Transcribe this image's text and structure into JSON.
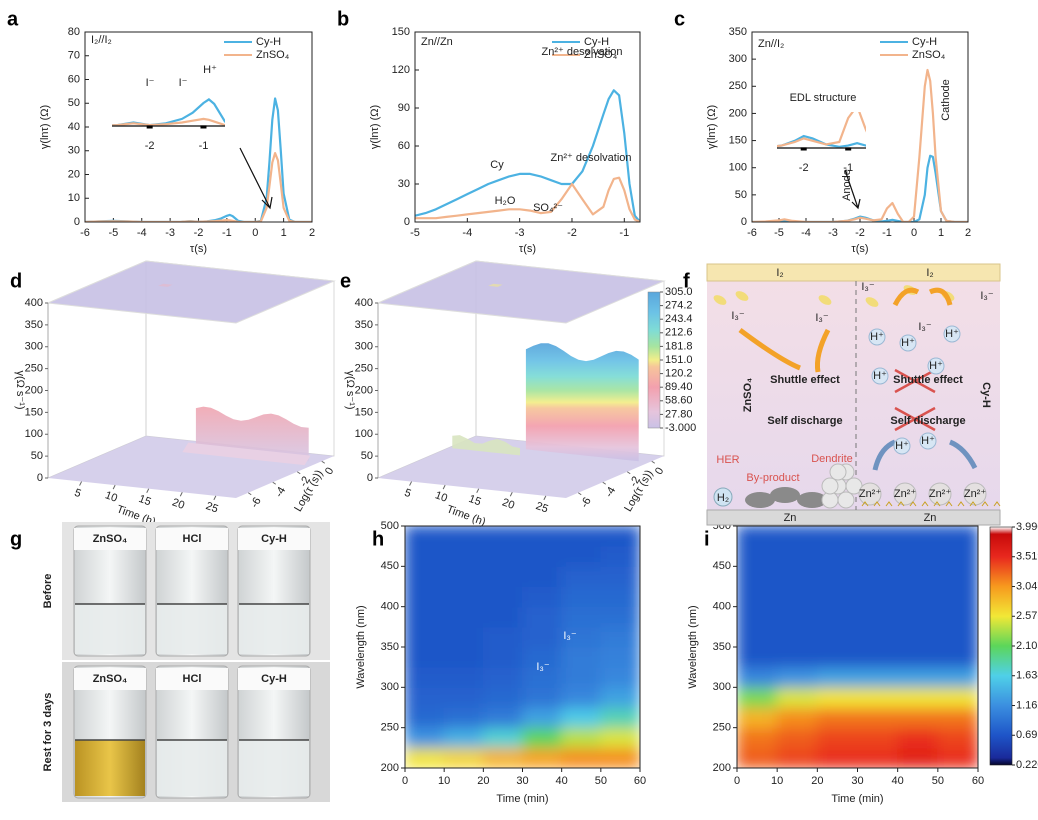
{
  "chart_data": [
    {
      "type": "line",
      "label": "a",
      "xlabel": "τ(s)",
      "ylabel": "γ(lnτ) (Ω)",
      "xlim": [
        -6,
        2
      ],
      "xticks": [
        -6,
        -5,
        -4,
        -3,
        -2,
        -1,
        0,
        1,
        2
      ],
      "ylim": [
        0,
        80
      ],
      "yticks": [
        0,
        10,
        20,
        30,
        40,
        50,
        60,
        70,
        80
      ],
      "annotations": [
        "I₂//I₂"
      ],
      "x": [
        -6,
        -5.5,
        -5,
        -4.5,
        -4,
        -3.5,
        -3,
        -2.6,
        -2.3,
        -2,
        -1.7,
        -1.4,
        -1.2,
        -1,
        -0.9,
        -0.8,
        -0.6,
        -0.4,
        -0.2,
        0,
        0.2,
        0.4,
        0.5,
        0.6,
        0.7,
        0.8,
        0.9,
        1,
        1.2,
        1.4,
        1.6,
        2
      ],
      "series": [
        {
          "name": "Cy-H",
          "color": "#4cb2e2",
          "values": [
            0,
            0.3,
            0.5,
            0.3,
            0,
            0,
            0,
            0.1,
            0.4,
            0.1,
            0.3,
            0.8,
            1.5,
            2.6,
            3,
            2.5,
            0.5,
            0,
            0,
            0,
            0.5,
            10,
            25,
            43,
            52,
            47,
            30,
            12,
            1,
            0,
            0,
            0
          ]
        },
        {
          "name": "ZnSO₄",
          "color": "#f2b48c",
          "values": [
            0,
            0.2,
            0.3,
            0.2,
            0,
            0,
            0,
            0.1,
            0.3,
            0.1,
            0.2,
            0.4,
            0.6,
            0.8,
            0.7,
            0.5,
            0.1,
            0,
            0,
            0,
            0.3,
            6,
            15,
            25,
            29,
            26,
            16,
            6,
            0.5,
            0,
            0,
            0
          ]
        }
      ],
      "inset": {
        "xlim": [
          -2.7,
          -0.6
        ],
        "ylim": [
          0,
          3.5
        ],
        "xticks": [
          -2,
          -1
        ],
        "annotations": [
          "I⁻",
          "I⁻",
          "H⁺"
        ]
      }
    },
    {
      "type": "line",
      "label": "b",
      "xlabel": "τ(s)",
      "ylabel": "γ(lnτ) (Ω)",
      "xlim": [
        -5,
        -0.7
      ],
      "xticks": [
        -5,
        -4,
        -3,
        -2,
        -1
      ],
      "ylim": [
        0,
        150
      ],
      "yticks": [
        0,
        30,
        60,
        90,
        120,
        150
      ],
      "annotations": [
        "Zn//Zn",
        "Cy",
        "H₂O",
        "Zn²⁺ desolvation",
        "SO₄²⁻",
        "Zn²⁺ desolvation"
      ],
      "x": [
        -5,
        -4.8,
        -4.6,
        -4.4,
        -4.2,
        -4,
        -3.8,
        -3.6,
        -3.4,
        -3.2,
        -3,
        -2.8,
        -2.6,
        -2.4,
        -2.2,
        -2,
        -1.8,
        -1.6,
        -1.4,
        -1.3,
        -1.2,
        -1.1,
        -1,
        -0.9,
        -0.8,
        -0.7
      ],
      "series": [
        {
          "name": "Cy-H",
          "color": "#4cb2e2",
          "values": [
            5,
            7,
            10,
            14,
            18,
            22,
            26,
            30,
            33,
            36,
            38,
            38,
            36,
            33,
            30,
            30,
            40,
            60,
            85,
            97,
            104,
            100,
            70,
            30,
            5,
            0
          ]
        },
        {
          "name": "ZnSO₄",
          "color": "#f2b48c",
          "values": [
            3,
            3,
            3,
            4,
            5,
            6,
            7,
            8,
            9,
            10,
            10,
            9,
            7,
            8,
            18,
            30,
            18,
            6,
            12,
            25,
            34,
            35,
            25,
            10,
            2,
            0
          ]
        }
      ]
    },
    {
      "type": "line",
      "label": "c",
      "xlabel": "τ(s)",
      "ylabel": "γ(lnτ) (Ω)",
      "xlim": [
        -6,
        2
      ],
      "xticks": [
        -6,
        -5,
        -4,
        -3,
        -2,
        -1,
        0,
        1,
        2
      ],
      "ylim": [
        0,
        350
      ],
      "yticks": [
        0,
        50,
        100,
        150,
        200,
        250,
        300,
        350
      ],
      "annotations": [
        "Zn//I₂",
        "Anode",
        "Cathode"
      ],
      "x": [
        -6,
        -5.5,
        -5,
        -4.8,
        -4.5,
        -4,
        -3.5,
        -3,
        -2.5,
        -2.2,
        -2,
        -1.8,
        -1.5,
        -1.2,
        -1,
        -0.8,
        -0.6,
        -0.4,
        -0.2,
        0,
        0.2,
        0.4,
        0.5,
        0.6,
        0.7,
        0.8,
        1,
        1.2,
        1.5,
        2
      ],
      "series": [
        {
          "name": "Cy-H",
          "color": "#4cb2e2",
          "values": [
            0,
            0,
            1,
            1,
            0,
            0,
            0,
            0,
            2,
            6,
            10,
            8,
            3,
            1,
            2,
            4,
            2,
            0,
            0,
            0,
            5,
            50,
            100,
            122,
            120,
            90,
            20,
            2,
            0,
            0
          ]
        },
        {
          "name": "ZnSO₄",
          "color": "#f2b48c",
          "values": [
            0,
            1,
            3,
            5,
            2,
            0,
            0,
            0,
            2,
            5,
            8,
            6,
            3,
            5,
            25,
            35,
            15,
            0,
            0,
            10,
            120,
            250,
            280,
            260,
            200,
            120,
            20,
            2,
            0,
            0
          ]
        }
      ],
      "inset": {
        "xlim": [
          -2.6,
          -0.6
        ],
        "ylim": [
          0,
          30
        ],
        "xticks": [
          -2,
          -1
        ],
        "annotations": [
          "EDL structure"
        ]
      }
    },
    {
      "type": "surface3d",
      "label": "d",
      "zlabel": "γ(Ω s⁻¹)",
      "xlabel": "Time (h)",
      "ylabel": "Log(τ (s))",
      "zlim": [
        0,
        400
      ],
      "zticks": [
        0,
        50,
        100,
        150,
        200,
        250,
        300,
        350,
        400
      ],
      "xlim": [
        0,
        28
      ],
      "xticks": [
        5,
        10,
        15,
        20,
        25
      ],
      "ylim": [
        -7,
        1
      ],
      "yticks": [
        -6,
        -4,
        -2,
        0
      ]
    },
    {
      "type": "surface3d",
      "label": "e",
      "zlabel": "γ(Ω s⁻¹)",
      "xlabel": "Time (h)",
      "ylabel": "Log(τ (s))",
      "zlim": [
        0,
        400
      ],
      "zticks": [
        0,
        50,
        100,
        150,
        200,
        250,
        300,
        350,
        400
      ],
      "xlim": [
        0,
        28
      ],
      "xticks": [
        5,
        10,
        15,
        20,
        25
      ],
      "ylim": [
        -7,
        1
      ],
      "yticks": [
        -6,
        -4,
        -2,
        0
      ],
      "colorbar": {
        "lim": [
          -3,
          305
        ],
        "ticks": [
          {
            "value": 305,
            "label": "305.0"
          },
          274.2,
          243.4,
          212.6,
          181.8,
          {
            "value": 151,
            "label": "151.0"
          },
          120.2,
          {
            "value": 89.4,
            "label": "89.40"
          },
          {
            "value": 58.6,
            "label": "58.60"
          },
          {
            "value": 27.8,
            "label": "27.80"
          },
          {
            "value": -3,
            "label": "-3.000"
          }
        ]
      }
    },
    {
      "type": "heatmap",
      "label": "h",
      "xlabel": "Time (min)",
      "ylabel": "Wavelength (nm)",
      "xlim": [
        0,
        60
      ],
      "xticks": [
        0,
        10,
        20,
        30,
        40,
        50,
        60
      ],
      "ylim": [
        200,
        500
      ],
      "yticks": [
        200,
        250,
        300,
        350,
        400,
        450,
        500
      ],
      "xbins": [
        0,
        10,
        20,
        30,
        40,
        50,
        60
      ],
      "ybins": [
        200,
        225,
        250,
        275,
        300,
        325,
        350,
        375,
        400,
        425,
        450,
        475,
        500
      ],
      "zlim": [
        0.22,
        3.99
      ],
      "annotations": [
        "I₃⁻",
        "I₃⁻"
      ],
      "z": [
        [
          2.6,
          2.7,
          2.9,
          3.0,
          3.1,
          3.1
        ],
        [
          1.2,
          1.4,
          1.7,
          2.1,
          2.4,
          2.5
        ],
        [
          0.85,
          0.9,
          1.0,
          1.3,
          1.6,
          1.8
        ],
        [
          0.8,
          0.8,
          0.85,
          0.95,
          1.1,
          1.3
        ],
        [
          0.75,
          0.75,
          0.8,
          0.9,
          1.0,
          1.1
        ],
        [
          0.7,
          0.7,
          0.75,
          0.85,
          1.0,
          1.05
        ],
        [
          0.7,
          0.7,
          0.75,
          0.8,
          0.95,
          1.0
        ],
        [
          0.7,
          0.7,
          0.7,
          0.8,
          0.9,
          0.9
        ],
        [
          0.7,
          0.7,
          0.7,
          0.75,
          0.85,
          0.85
        ],
        [
          0.7,
          0.7,
          0.7,
          0.7,
          0.8,
          0.8
        ],
        [
          0.7,
          0.7,
          0.7,
          0.7,
          0.7,
          0.75
        ],
        [
          0.7,
          0.7,
          0.7,
          0.7,
          0.7,
          0.7
        ]
      ]
    },
    {
      "type": "heatmap",
      "label": "i",
      "xlabel": "Time (min)",
      "ylabel": "Wavelength (nm)",
      "xlim": [
        0,
        60
      ],
      "xticks": [
        0,
        10,
        20,
        30,
        40,
        50,
        60
      ],
      "ylim": [
        200,
        500
      ],
      "yticks": [
        200,
        250,
        300,
        350,
        400,
        450,
        500
      ],
      "xbins": [
        0,
        10,
        20,
        30,
        40,
        50,
        60
      ],
      "ybins": [
        200,
        225,
        250,
        275,
        300,
        325,
        350,
        375,
        400,
        425,
        450,
        475,
        500
      ],
      "zlim": [
        0.22,
        3.99
      ],
      "annotations": [],
      "z": [
        [
          3.3,
          3.4,
          3.5,
          3.5,
          3.6,
          3.5
        ],
        [
          3.2,
          3.3,
          3.4,
          3.4,
          3.5,
          3.4
        ],
        [
          2.9,
          3.1,
          3.2,
          3.2,
          3.2,
          3.2
        ],
        [
          2.2,
          2.5,
          2.6,
          2.6,
          2.6,
          2.6
        ],
        [
          1.1,
          1.2,
          1.3,
          1.3,
          1.3,
          1.3
        ],
        [
          0.7,
          0.7,
          0.7,
          0.7,
          0.7,
          0.7
        ],
        [
          0.7,
          0.7,
          0.7,
          0.7,
          0.7,
          0.7
        ],
        [
          0.7,
          0.7,
          0.7,
          0.7,
          0.7,
          0.7
        ],
        [
          0.7,
          0.7,
          0.7,
          0.7,
          0.7,
          0.7
        ],
        [
          0.7,
          0.7,
          0.7,
          0.7,
          0.7,
          0.7
        ],
        [
          0.7,
          0.7,
          0.7,
          0.7,
          0.7,
          0.7
        ],
        [
          0.7,
          0.7,
          0.7,
          0.7,
          0.7,
          0.7
        ]
      ],
      "colorbar_ticks": [
        {
          "value": 3.99,
          "label": "3.990"
        },
        3.519,
        3.047,
        2.576,
        2.105,
        1.634,
        1.162,
        {
          "value": 0.6912,
          "label": "0.6912"
        },
        {
          "value": 0.22,
          "label": "0.2200"
        }
      ]
    }
  ],
  "diagram_f": {
    "label": "f",
    "texts": [
      "I₂",
      "I₂",
      "I₃⁻",
      "I₃⁻",
      "Shuttle effect",
      "Self discharge",
      "ZnSO₄",
      "HER",
      "By-product",
      "Dendrite",
      "H₂",
      "I₃⁻",
      "I₃⁻",
      "I₃⁻",
      "Shuttle effect",
      "Self discharge",
      "Cy-H",
      "H⁺",
      "H⁺",
      "H⁺",
      "H⁺",
      "H⁺",
      "H⁺",
      "H⁺",
      "Zn²⁺",
      "Zn²⁺",
      "Zn²⁺",
      "Zn²⁺",
      "Zn",
      "Zn"
    ]
  },
  "photo_g": {
    "label": "g",
    "rows": [
      {
        "label": "Before",
        "vials": [
          "ZnSO₄",
          "HCl",
          "Cy-H"
        ]
      },
      {
        "label": "Rest for 3 days",
        "vials": [
          "ZnSO₄",
          "HCl",
          "Cy-H"
        ]
      }
    ]
  }
}
